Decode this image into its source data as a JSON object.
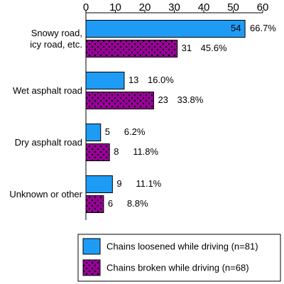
{
  "chart_data": {
    "type": "hbar",
    "categories": [
      "Snowy road,\nicy road, etc.",
      "Wet asphalt road",
      "Dry asphalt road",
      "Unknown or other"
    ],
    "series": [
      {
        "name": "Chains loosened while driving (n=81)",
        "color": "#1e9cf5",
        "pattern": "solid",
        "values": [
          54,
          13,
          5,
          9
        ],
        "percent_labels": [
          "66.7%",
          "16.0%",
          "6.2%",
          "11.1%"
        ]
      },
      {
        "name": "Chains broken while driving (n=68)",
        "color": "#990099",
        "pattern": "dots",
        "values": [
          31,
          23,
          8,
          6
        ],
        "percent_labels": [
          "45.6%",
          "33.8%",
          "11.8%",
          "8.8%"
        ]
      }
    ],
    "xlim": [
      0,
      60
    ],
    "xticks": [
      0,
      10,
      20,
      30,
      40,
      50,
      60
    ],
    "grid": false
  }
}
